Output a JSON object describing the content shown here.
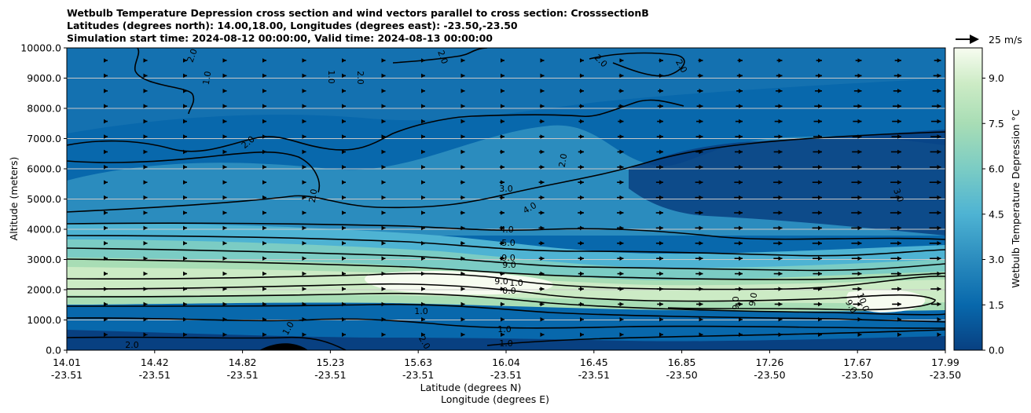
{
  "chart_data": {
    "type": "contour",
    "title_lines": [
      "Wetbulb Temperature Depression cross section and wind vectors parallel to cross section: CrosssectionB",
      "Latitudes (degrees north): 14.00,18.00, Longitudes (degrees east): -23.50,-23.50",
      "Simulation start time: 2024-08-12 00:00:00, Valid time: 2024-08-13 00:00:00"
    ],
    "ylabel": "Altitude (meters)",
    "xlabel_lat": "Latitude (degrees N)",
    "xlabel_lon": "Longitude (degrees E)",
    "ylim": [
      0,
      10000
    ],
    "y_ticks": [
      0,
      1000,
      2000,
      3000,
      4000,
      5000,
      6000,
      7000,
      8000,
      9000,
      10000
    ],
    "y_tick_labels": [
      "0.0",
      "1000.0",
      "2000.0",
      "3000.0",
      "4000.0",
      "5000.0",
      "6000.0",
      "7000.0",
      "8000.0",
      "9000.0",
      "10000.0"
    ],
    "x_ticks": [
      {
        "lat": "14.01",
        "lon": "-23.51"
      },
      {
        "lat": "14.42",
        "lon": "-23.51"
      },
      {
        "lat": "14.82",
        "lon": "-23.51"
      },
      {
        "lat": "15.23",
        "lon": "-23.51"
      },
      {
        "lat": "15.63",
        "lon": "-23.51"
      },
      {
        "lat": "16.04",
        "lon": "-23.51"
      },
      {
        "lat": "16.45",
        "lon": "-23.51"
      },
      {
        "lat": "16.85",
        "lon": "-23.50"
      },
      {
        "lat": "17.26",
        "lon": "-23.50"
      },
      {
        "lat": "17.67",
        "lon": "-23.50"
      },
      {
        "lat": "17.99",
        "lon": "-23.50"
      }
    ],
    "colorbar": {
      "label": "Wetbulb Temperature Depression $^\\circ$C",
      "label_text": "Wetbulb Temperature Depression °C",
      "range": [
        0,
        10
      ],
      "ticks": [
        0,
        1.5,
        3.0,
        4.5,
        6.0,
        7.5,
        9.0
      ],
      "tick_labels": [
        "0.0",
        "1.5",
        "3.0",
        "4.5",
        "6.0",
        "7.5",
        "9.0"
      ],
      "cmap": "GnBu_r",
      "levels": 20
    },
    "quiver_key": {
      "label": "25 m/s",
      "speed": 25
    },
    "contour_labels": [
      "2.0",
      "1.0",
      "1.0",
      "2.0",
      "2.0",
      "2.0",
      "2.0",
      "2.0",
      "2.0",
      "3.0",
      "4.0",
      "5.0",
      "9.0",
      "9.0",
      "9.0",
      "1.0",
      "0.0",
      "1.0",
      "1.0",
      "1.0",
      "2.0",
      "1.0",
      "3.0",
      "9.0",
      "9.0",
      "10.0",
      "9.0",
      "2.0",
      "4.0",
      "2.0"
    ]
  }
}
